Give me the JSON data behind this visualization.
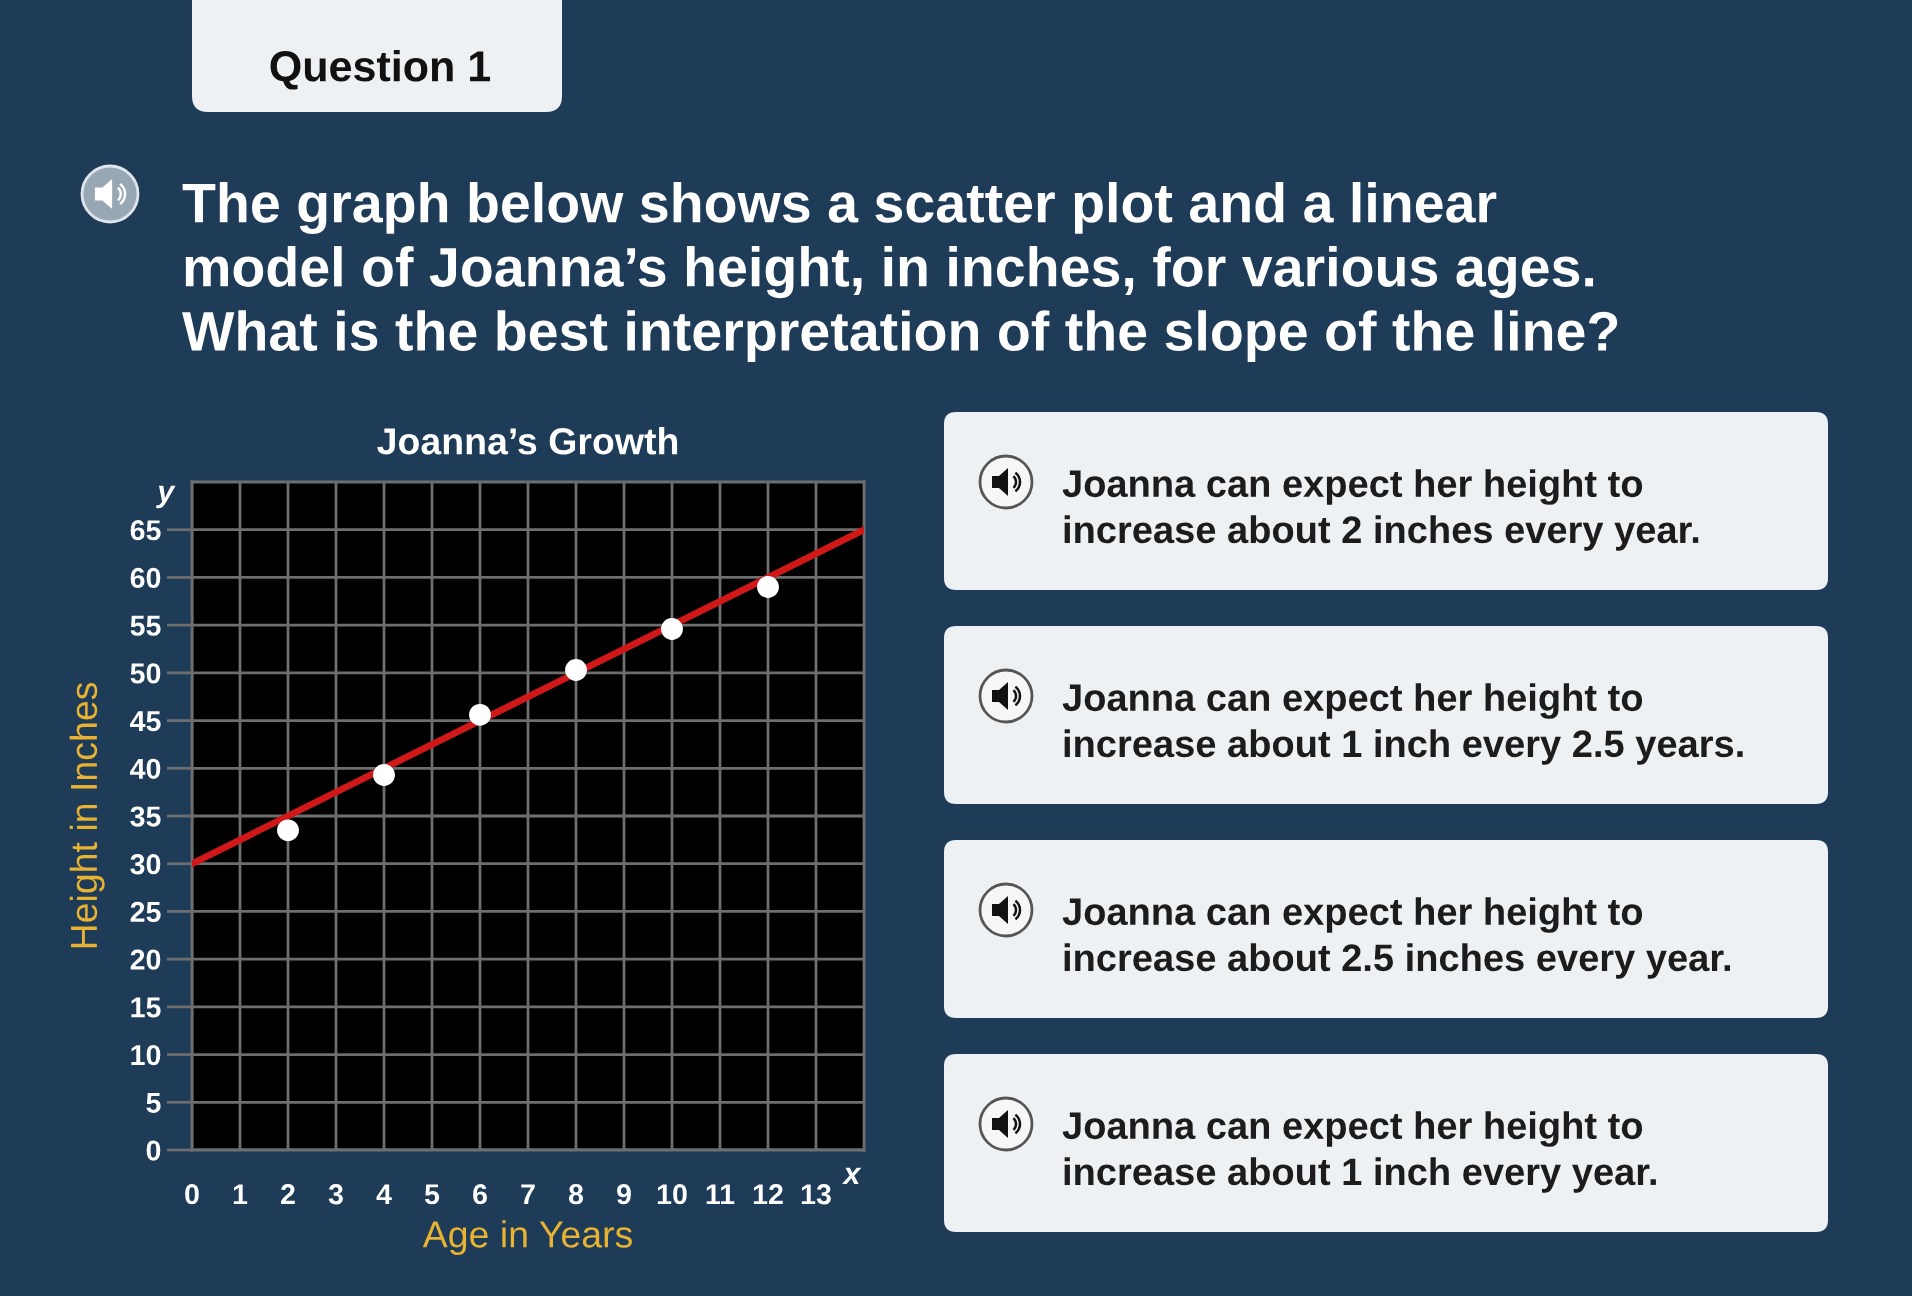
{
  "chart_data": [
    {
      "type": "other",
      "title": "Question 1",
      "subtitle": "The graph below shows a scatter plot and a linear\nmodel of Joanna’s height, in inches, for various ages.\nWhat is the best interpretation of the slope of the line?"
    },
    {
      "type": "scatter",
      "title": "Joanna’s Growth",
      "xlabel": "Age in Years",
      "ylabel": "Height in Inches",
      "annotations": [
        "y",
        "x"
      ],
      "series": [
        {
          "type": "line",
          "color": "#d01818",
          "x": [
            0,
            14
          ],
          "values": [
            30,
            65
          ]
        },
        {
          "type": "scatter",
          "color": "#ffffff",
          "marker": "circle",
          "x": [
            2,
            4,
            6,
            8,
            10,
            12
          ],
          "values": [
            33.5,
            39.3,
            45.6,
            50.3,
            54.6,
            59.0
          ]
        }
      ],
      "xlim": [
        0,
        14
      ],
      "ylim": [
        0,
        70
      ],
      "xticks": [
        0,
        1,
        2,
        3,
        4,
        5,
        6,
        7,
        8,
        9,
        10,
        11,
        12,
        13
      ],
      "yticks": [
        0,
        5,
        10,
        15,
        20,
        25,
        30,
        35,
        40,
        45,
        50,
        55,
        60,
        65
      ],
      "grid": true
    },
    {
      "type": "other",
      "annotations": [
        "Joanna can expect her height to\nincrease about 2 inches every year.",
        "Joanna can expect her height to\nincrease about 1 inch every 2.5 years.",
        "Joanna can expect her height to\nincrease about 2.5 inches every year.",
        "Joanna can expect her height to\nincrease about 1 inch every year."
      ]
    }
  ]
}
